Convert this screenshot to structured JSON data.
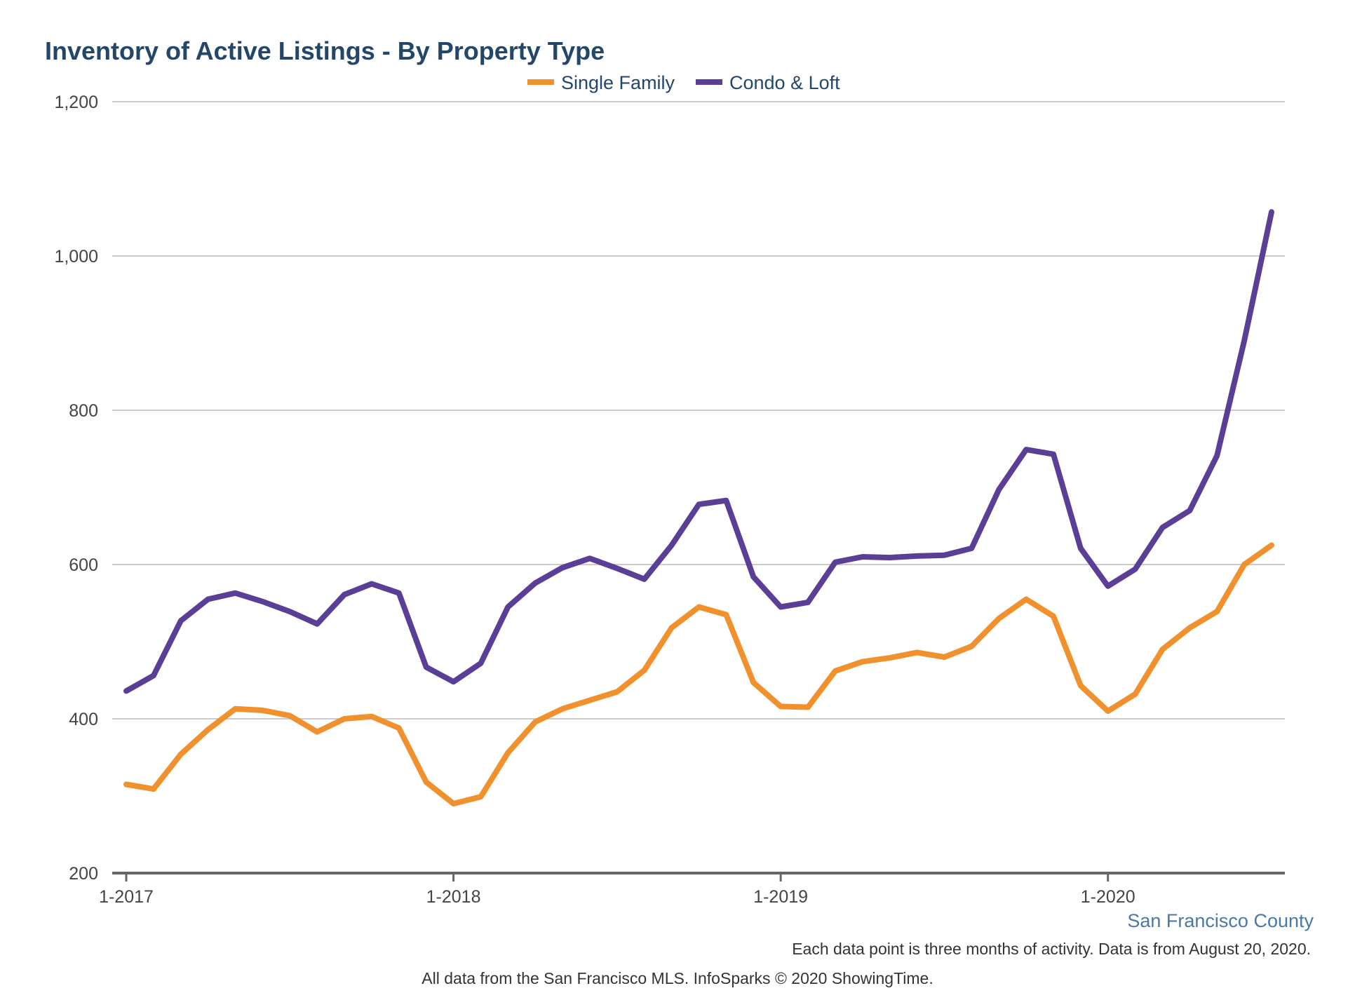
{
  "colors": {
    "single_family": "#f0912e",
    "condo_loft": "#5b3f96",
    "title": "#23476b",
    "grid": "#cccccc",
    "axis": "#666666",
    "region": "#4a78a8"
  },
  "region": "San Francisco County",
  "note": "Each data point is three months of activity. Data is from August 20, 2020.",
  "source": "All data from the San Francisco MLS. InfoSparks © 2020 ShowingTime.",
  "chart_data": {
    "type": "line",
    "title": "Inventory of Active Listings - By Property Type",
    "xlabel": "",
    "ylabel": "",
    "ylim": [
      200,
      1200
    ],
    "yticks": [
      200,
      400,
      600,
      800,
      1000,
      1200
    ],
    "ytick_labels": [
      "200",
      "400",
      "600",
      "800",
      "1,000",
      "1,200"
    ],
    "xticks": [
      "1-2017",
      "1-2018",
      "1-2019",
      "1-2020"
    ],
    "xlim": [
      "2017-01",
      "2020-07"
    ],
    "grid": true,
    "legend": "top-center",
    "x": [
      "2017-01",
      "2017-02",
      "2017-03",
      "2017-04",
      "2017-05",
      "2017-06",
      "2017-07",
      "2017-08",
      "2017-09",
      "2017-10",
      "2017-11",
      "2017-12",
      "2018-01",
      "2018-02",
      "2018-03",
      "2018-04",
      "2018-05",
      "2018-06",
      "2018-07",
      "2018-08",
      "2018-09",
      "2018-10",
      "2018-11",
      "2018-12",
      "2019-01",
      "2019-02",
      "2019-03",
      "2019-04",
      "2019-05",
      "2019-06",
      "2019-07",
      "2019-08",
      "2019-09",
      "2019-10",
      "2019-11",
      "2019-12",
      "2020-01",
      "2020-02",
      "2020-03",
      "2020-04",
      "2020-05",
      "2020-06",
      "2020-07"
    ],
    "series": [
      {
        "name": "Single Family",
        "color": "#f0912e",
        "values": [
          315,
          309,
          354,
          386,
          413,
          411,
          404,
          383,
          400,
          403,
          388,
          318,
          290,
          299,
          356,
          396,
          413,
          424,
          435,
          463,
          518,
          545,
          535,
          447,
          416,
          415,
          462,
          474,
          479,
          486,
          480,
          494,
          530,
          555,
          533,
          443,
          410,
          432,
          490,
          518,
          539,
          600,
          625
        ]
      },
      {
        "name": "Condo & Loft",
        "color": "#5b3f96",
        "values": [
          436,
          456,
          527,
          555,
          563,
          552,
          539,
          523,
          561,
          575,
          563,
          467,
          448,
          472,
          545,
          576,
          596,
          608,
          595,
          581,
          625,
          678,
          683,
          584,
          545,
          551,
          603,
          610,
          609,
          611,
          612,
          621,
          697,
          749,
          743,
          621,
          572,
          594,
          648,
          670,
          741,
          890,
          1057
        ]
      }
    ]
  }
}
